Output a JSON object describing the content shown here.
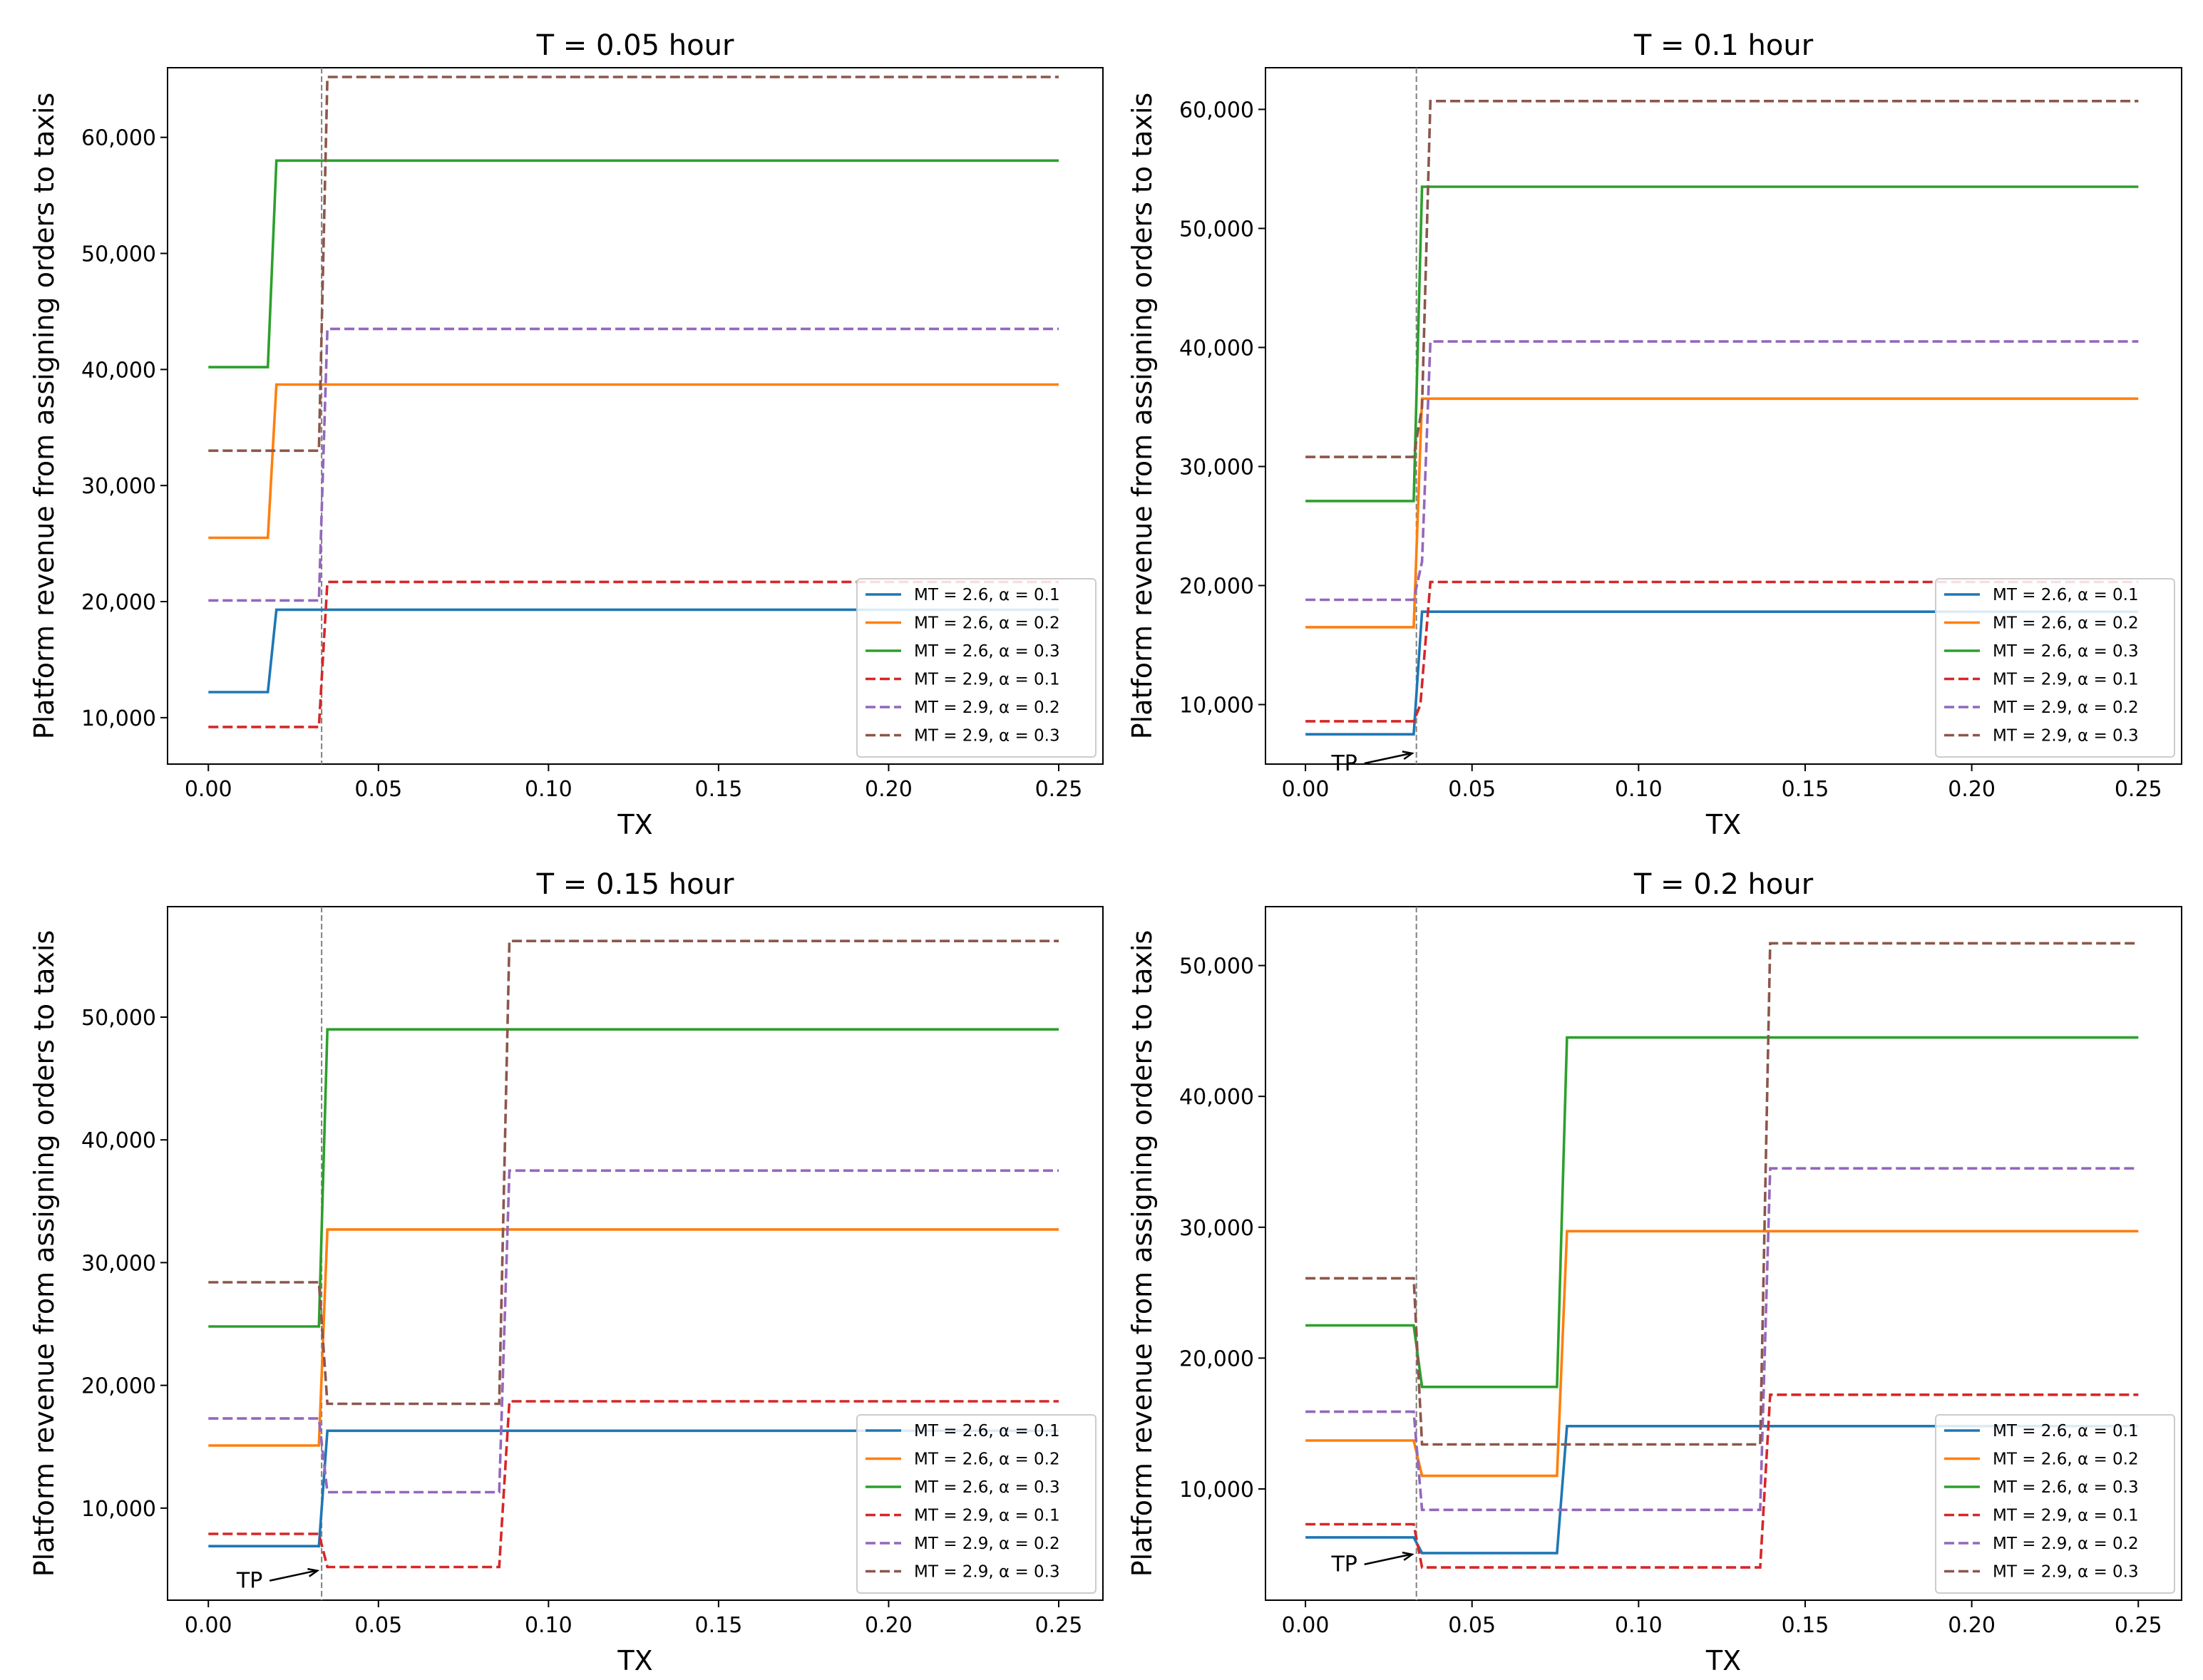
{
  "chart_data": [
    {
      "type": "line",
      "title": "T = 0.05 hour",
      "xlabel": "TX",
      "ylabel": "Platform revenue from assigning orders to taxis",
      "xlim": [
        -0.012,
        0.263
      ],
      "ylim": [
        6000,
        66000
      ],
      "xticks": [
        0.0,
        0.05,
        0.1,
        0.15,
        0.2,
        0.25
      ],
      "xtick_labels": [
        "0.00",
        "0.05",
        "0.10",
        "0.15",
        "0.20",
        "0.25"
      ],
      "yticks": [
        10000,
        20000,
        30000,
        40000,
        50000,
        60000
      ],
      "ytick_labels": [
        "10,000",
        "20,000",
        "30,000",
        "40,000",
        "50,000",
        "60,000"
      ],
      "vline_x": 0.0333,
      "tp_annotation": null,
      "legend_location": "lower-right",
      "series": [
        {
          "name": "MT = 2.6, α = 0.1",
          "x": [
            0,
            0.0175,
            0.02,
            0.25
          ],
          "values": [
            12200,
            12200,
            19300,
            19300
          ]
        },
        {
          "name": "MT = 2.6, α = 0.2",
          "x": [
            0,
            0.0175,
            0.02,
            0.25
          ],
          "values": [
            25500,
            25500,
            38700,
            38700
          ]
        },
        {
          "name": "MT = 2.6, α = 0.3",
          "x": [
            0,
            0.0175,
            0.02,
            0.25
          ],
          "values": [
            40200,
            40200,
            58000,
            58000
          ]
        },
        {
          "name": "MT = 2.9, α = 0.1",
          "x": [
            0,
            0.0325,
            0.035,
            0.25
          ],
          "values": [
            9200,
            9200,
            21700,
            21700
          ]
        },
        {
          "name": "MT = 2.9, α = 0.2",
          "x": [
            0,
            0.0325,
            0.035,
            0.25
          ],
          "values": [
            20100,
            20100,
            43500,
            43500
          ]
        },
        {
          "name": "MT = 2.9, α = 0.3",
          "x": [
            0,
            0.0325,
            0.035,
            0.25
          ],
          "values": [
            33000,
            33000,
            65200,
            65200
          ]
        }
      ]
    },
    {
      "type": "line",
      "title": "T = 0.1 hour",
      "xlabel": "TX",
      "ylabel": "Platform revenue from assigning orders to taxis",
      "xlim": [
        -0.012,
        0.263
      ],
      "ylim": [
        5000,
        63500
      ],
      "xticks": [
        0.0,
        0.05,
        0.1,
        0.15,
        0.2,
        0.25
      ],
      "xtick_labels": [
        "0.00",
        "0.05",
        "0.10",
        "0.15",
        "0.20",
        "0.25"
      ],
      "yticks": [
        10000,
        20000,
        30000,
        40000,
        50000,
        60000
      ],
      "ytick_labels": [
        "10,000",
        "20,000",
        "30,000",
        "40,000",
        "50,000",
        "60,000"
      ],
      "vline_x": 0.0333,
      "tp_annotation": {
        "text": "TP",
        "x": 0.0333,
        "y": 5900
      },
      "legend_location": "lower-right",
      "series": [
        {
          "name": "MT = 2.6, α = 0.1",
          "x": [
            0,
            0.0325,
            0.035,
            0.25
          ],
          "values": [
            7500,
            7500,
            17800,
            17800
          ]
        },
        {
          "name": "MT = 2.6, α = 0.2",
          "x": [
            0,
            0.0325,
            0.035,
            0.25
          ],
          "values": [
            16500,
            16500,
            35700,
            35700
          ]
        },
        {
          "name": "MT = 2.6, α = 0.3",
          "x": [
            0,
            0.0325,
            0.035,
            0.25
          ],
          "values": [
            27100,
            27100,
            53500,
            53500
          ]
        },
        {
          "name": "MT = 2.9, α = 0.1",
          "x": [
            0,
            0.0325,
            0.0345,
            0.0375,
            0.25
          ],
          "values": [
            8600,
            8600,
            10000,
            20300,
            20300
          ]
        },
        {
          "name": "MT = 2.9, α = 0.2",
          "x": [
            0,
            0.0325,
            0.035,
            0.0375,
            0.25
          ],
          "values": [
            18800,
            18800,
            22000,
            40500,
            40500
          ]
        },
        {
          "name": "MT = 2.9, α = 0.3",
          "x": [
            0,
            0.0325,
            0.035,
            0.0375,
            0.25
          ],
          "values": [
            30800,
            30800,
            35000,
            60700,
            60700
          ]
        }
      ]
    },
    {
      "type": "line",
      "title": "T = 0.15 hour",
      "xlabel": "TX",
      "ylabel": "Platform revenue from assigning orders to taxis",
      "xlim": [
        -0.012,
        0.263
      ],
      "ylim": [
        2500,
        59000
      ],
      "xticks": [
        0.0,
        0.05,
        0.1,
        0.15,
        0.2,
        0.25
      ],
      "xtick_labels": [
        "0.00",
        "0.05",
        "0.10",
        "0.15",
        "0.20",
        "0.25"
      ],
      "yticks": [
        10000,
        20000,
        30000,
        40000,
        50000
      ],
      "ytick_labels": [
        "10,000",
        "20,000",
        "30,000",
        "40,000",
        "50,000"
      ],
      "vline_x": 0.0333,
      "tp_annotation": {
        "text": "TP",
        "x": 0.0333,
        "y": 4900
      },
      "legend_location": "lower-right",
      "series": [
        {
          "name": "MT = 2.6, α = 0.1",
          "x": [
            0,
            0.0325,
            0.035,
            0.25
          ],
          "values": [
            6900,
            6900,
            16300,
            16300
          ]
        },
        {
          "name": "MT = 2.6, α = 0.2",
          "x": [
            0,
            0.0325,
            0.035,
            0.25
          ],
          "values": [
            15100,
            15100,
            32700,
            32700
          ]
        },
        {
          "name": "MT = 2.6, α = 0.3",
          "x": [
            0,
            0.0325,
            0.035,
            0.25
          ],
          "values": [
            24800,
            24800,
            49000,
            49000
          ]
        },
        {
          "name": "MT = 2.9, α = 0.1",
          "x": [
            0,
            0.0325,
            0.035,
            0.0855,
            0.0885,
            0.25
          ],
          "values": [
            7900,
            7900,
            5200,
            5200,
            18700,
            18700
          ]
        },
        {
          "name": "MT = 2.9, α = 0.2",
          "x": [
            0,
            0.0325,
            0.035,
            0.0855,
            0.0885,
            0.25
          ],
          "values": [
            17300,
            17300,
            11300,
            11300,
            37500,
            37500
          ]
        },
        {
          "name": "MT = 2.9, α = 0.3",
          "x": [
            0,
            0.0325,
            0.035,
            0.0855,
            0.0885,
            0.25
          ],
          "values": [
            28400,
            28400,
            18500,
            18500,
            56200,
            56200
          ]
        }
      ]
    },
    {
      "type": "line",
      "title": "T = 0.2 hour",
      "xlabel": "TX",
      "ylabel": "Platform revenue from assigning orders to taxis",
      "xlim": [
        -0.012,
        0.263
      ],
      "ylim": [
        1500,
        54500
      ],
      "xticks": [
        0.0,
        0.05,
        0.1,
        0.15,
        0.2,
        0.25
      ],
      "xtick_labels": [
        "0.00",
        "0.05",
        "0.10",
        "0.15",
        "0.20",
        "0.25"
      ],
      "yticks": [
        10000,
        20000,
        30000,
        40000,
        50000
      ],
      "ytick_labels": [
        "10,000",
        "20,000",
        "30,000",
        "40,000",
        "50,000"
      ],
      "vline_x": 0.0333,
      "tp_annotation": {
        "text": "TP",
        "x": 0.0333,
        "y": 5000
      },
      "legend_location": "lower-right",
      "series": [
        {
          "name": "MT = 2.6, α = 0.1",
          "x": [
            0,
            0.0325,
            0.035,
            0.0755,
            0.0785,
            0.25
          ],
          "values": [
            6300,
            6300,
            5100,
            5100,
            14800,
            14800
          ]
        },
        {
          "name": "MT = 2.6, α = 0.2",
          "x": [
            0,
            0.0325,
            0.035,
            0.0755,
            0.0785,
            0.25
          ],
          "values": [
            13700,
            13700,
            11000,
            11000,
            29700,
            29700
          ]
        },
        {
          "name": "MT = 2.6, α = 0.3",
          "x": [
            0,
            0.0325,
            0.035,
            0.0755,
            0.0785,
            0.25
          ],
          "values": [
            22500,
            22500,
            17800,
            17800,
            44500,
            44500
          ]
        },
        {
          "name": "MT = 2.9, α = 0.1",
          "x": [
            0,
            0.0325,
            0.035,
            0.1365,
            0.1395,
            0.25
          ],
          "values": [
            7300,
            7300,
            4000,
            4000,
            17200,
            17200
          ]
        },
        {
          "name": "MT = 2.9, α = 0.2",
          "x": [
            0,
            0.0325,
            0.035,
            0.1365,
            0.1395,
            0.25
          ],
          "values": [
            15900,
            15900,
            8400,
            8400,
            34500,
            34500
          ]
        },
        {
          "name": "MT = 2.9, α = 0.3",
          "x": [
            0,
            0.0325,
            0.035,
            0.1365,
            0.1395,
            0.25
          ],
          "values": [
            26100,
            26100,
            13400,
            13400,
            51700,
            51700
          ]
        }
      ]
    }
  ],
  "series_styles": [
    {
      "color": "#1f77b4",
      "dash": "solid"
    },
    {
      "color": "#ff7f0e",
      "dash": "solid"
    },
    {
      "color": "#2ca02c",
      "dash": "solid"
    },
    {
      "color": "#d62728",
      "dash": "dashed"
    },
    {
      "color": "#9467bd",
      "dash": "dashed"
    },
    {
      "color": "#8c564b",
      "dash": "dashed"
    }
  ]
}
